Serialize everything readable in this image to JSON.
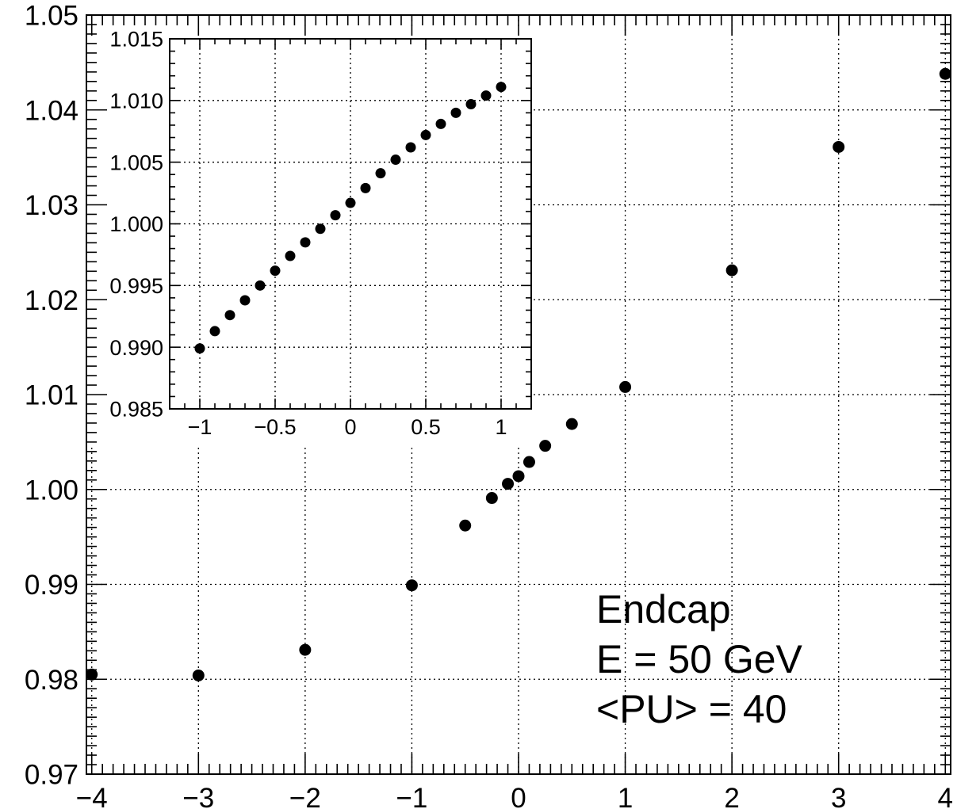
{
  "chart_data": [
    {
      "id": "main",
      "type": "scatter",
      "xlim": [
        -4.05,
        4.05
      ],
      "ylim": [
        0.97,
        1.05
      ],
      "xticks": [
        -4,
        -3,
        -2,
        -1,
        0,
        1,
        2,
        3,
        4
      ],
      "xtick_labels": [
        "−4",
        "−3",
        "−2",
        "−1",
        "0",
        "1",
        "2",
        "3",
        "4"
      ],
      "yticks": [
        0.97,
        0.98,
        0.99,
        1.0,
        1.01,
        1.02,
        1.03,
        1.04,
        1.05
      ],
      "ytick_labels": [
        "0.97",
        "0.98",
        "0.99",
        "1.00",
        "1.01",
        "1.02",
        "1.03",
        "1.04",
        "1.05"
      ],
      "grid": true,
      "series": [
        {
          "x": [
            -4,
            -3,
            -2,
            -1,
            -0.5,
            -0.25,
            -0.1,
            0,
            0.1,
            0.25,
            0.5,
            1,
            2,
            3,
            4
          ],
          "y": [
            0.9805,
            0.9804,
            0.9831,
            0.9899,
            0.9962,
            0.9991,
            1.0006,
            1.0014,
            1.0029,
            1.0046,
            1.0069,
            1.0108,
            1.0231,
            1.0361,
            1.0438
          ]
        }
      ],
      "annotations": [
        "Endcap",
        "E = 50 GeV",
        "<PU> = 40"
      ]
    },
    {
      "id": "inset",
      "type": "scatter",
      "xlim": [
        -1.2,
        1.2
      ],
      "ylim": [
        0.985,
        1.015
      ],
      "xticks": [
        -1,
        -0.5,
        0,
        0.5,
        1
      ],
      "xtick_labels": [
        "−1",
        "−0.5",
        "0",
        "0.5",
        "1"
      ],
      "yticks": [
        0.985,
        0.99,
        0.995,
        1.0,
        1.005,
        1.01,
        1.015
      ],
      "ytick_labels": [
        "0.985",
        "0.990",
        "0.995",
        "1.000",
        "1.005",
        "1.010",
        "1.015"
      ],
      "grid": true,
      "series": [
        {
          "x": [
            -1,
            -0.9,
            -0.8,
            -0.7,
            -0.6,
            -0.5,
            -0.4,
            -0.3,
            -0.2,
            -0.1,
            0,
            0.1,
            0.2,
            0.3,
            0.4,
            0.5,
            0.6,
            0.7,
            0.8,
            0.9,
            1
          ],
          "y": [
            0.9899,
            0.9913,
            0.9926,
            0.9938,
            0.995,
            0.9962,
            0.9974,
            0.9985,
            0.9996,
            1.0007,
            1.0017,
            1.0029,
            1.0041,
            1.0052,
            1.0062,
            1.0072,
            1.0081,
            1.009,
            1.0097,
            1.0104,
            1.0111
          ]
        }
      ]
    }
  ]
}
